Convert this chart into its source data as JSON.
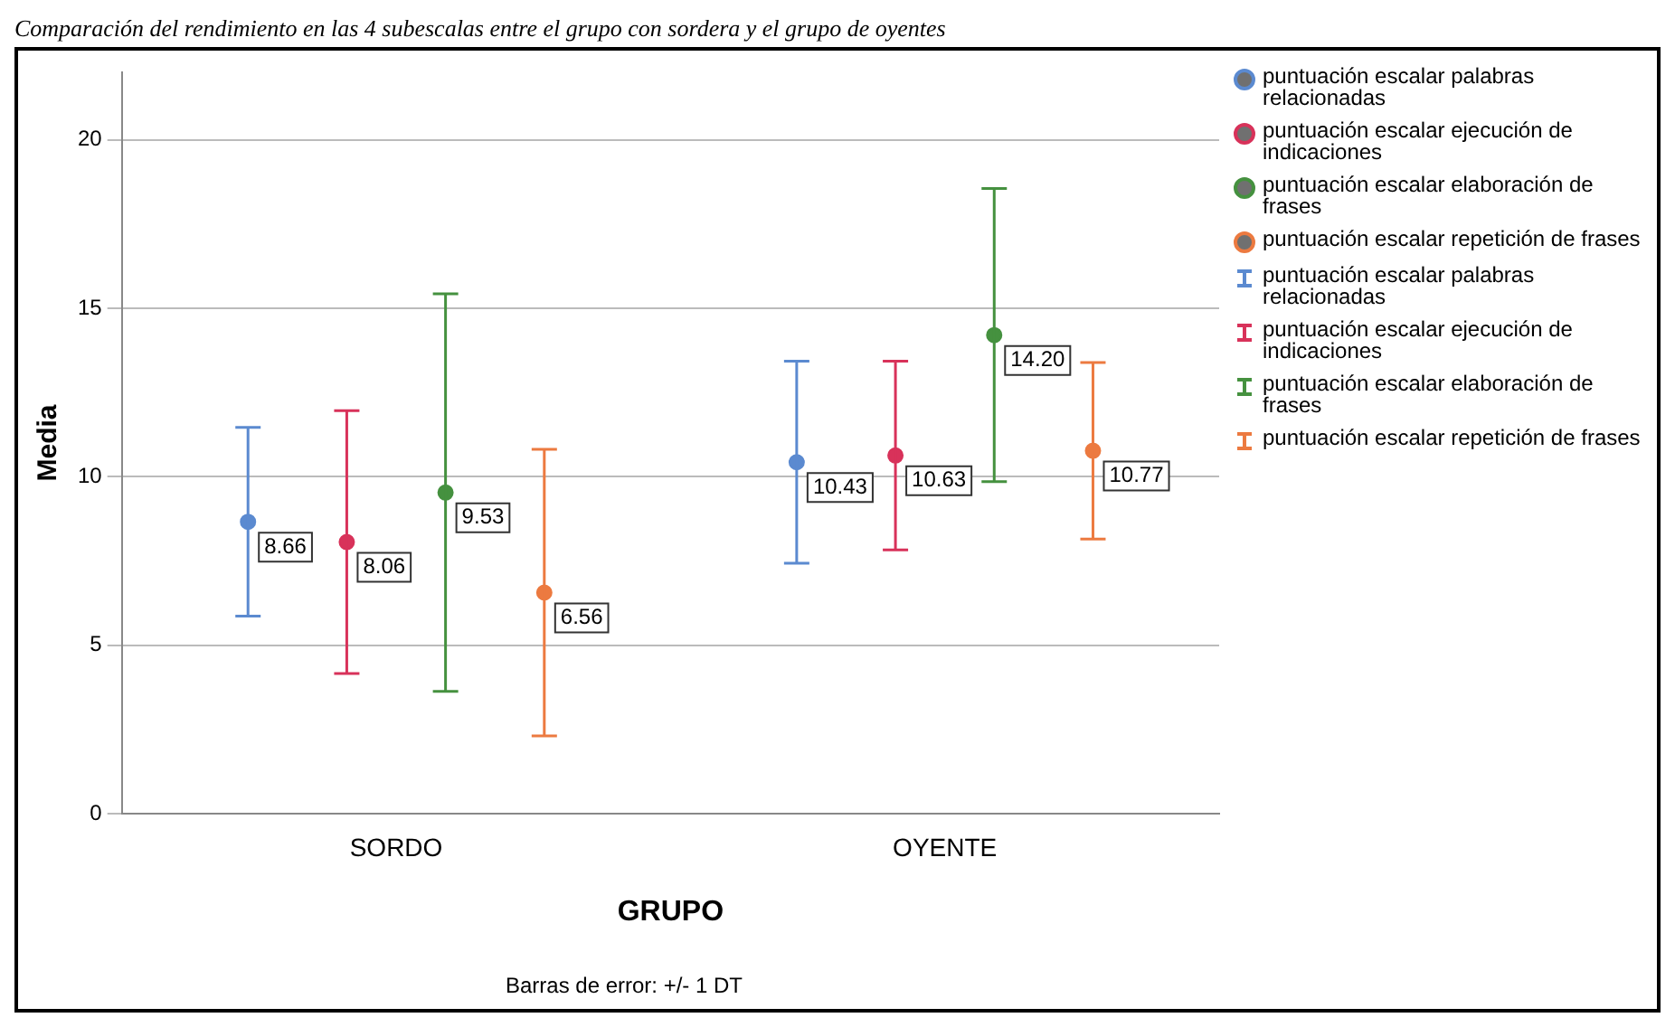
{
  "chart_data": {
    "type": "scatter",
    "title": "Comparación del rendimiento en las 4 subescalas entre el grupo con sordera y el grupo de oyentes",
    "xlabel": "GRUPO",
    "ylabel": "Media",
    "categories": [
      "SORDO",
      "OYENTE"
    ],
    "series": [
      {
        "name": "puntuación escalar palabras relacionadas",
        "color": "#5b8ad0",
        "values": [
          8.66,
          10.43
        ],
        "errors": [
          2.8,
          3.0
        ],
        "value_labels": [
          "8.66",
          "10.43"
        ]
      },
      {
        "name": "puntuación escalar ejecución de indicaciones",
        "color": "#d8325a",
        "values": [
          8.06,
          10.63
        ],
        "errors": [
          3.9,
          2.8
        ],
        "value_labels": [
          "8.06",
          "10.63"
        ]
      },
      {
        "name": "puntuación escalar elaboración de frases",
        "color": "#45913f",
        "values": [
          9.53,
          14.2
        ],
        "errors": [
          5.9,
          4.35
        ],
        "value_labels": [
          "9.53",
          "14.20"
        ]
      },
      {
        "name": "puntuación escalar repetición de frases",
        "color": "#ec7a40",
        "values": [
          6.56,
          10.77
        ],
        "errors": [
          4.25,
          2.62
        ],
        "value_labels": [
          "6.56",
          "10.77"
        ]
      }
    ],
    "ylim": [
      0,
      22
    ],
    "yticks": [
      0,
      5,
      10,
      15,
      20
    ],
    "grid": "y",
    "legend": "right",
    "marker": "circle",
    "annotations": [
      "Barras de error: +/- 1 DT"
    ]
  }
}
